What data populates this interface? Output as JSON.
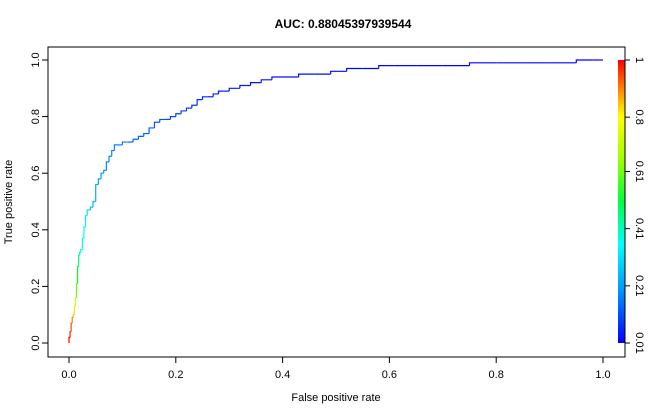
{
  "chart_data": {
    "type": "line",
    "title": "AUC: 0.88045397939544",
    "xlabel": "False positive rate",
    "ylabel": "True positive rate",
    "xlim": [
      0,
      1
    ],
    "ylim": [
      0,
      1
    ],
    "x_ticks": [
      "0.0",
      "0.2",
      "0.4",
      "0.6",
      "0.8",
      "1.0"
    ],
    "y_ticks": [
      "0.0",
      "0.2",
      "0.4",
      "0.6",
      "0.8",
      "1.0"
    ],
    "grid": false,
    "colorbar": {
      "ticks": [
        "0.01",
        "0.21",
        "0.41",
        "0.61",
        "0.8",
        "1"
      ],
      "tick_values": [
        0.01,
        0.21,
        0.41,
        0.61,
        0.8,
        1.0
      ],
      "range": [
        0.01,
        1.0
      ]
    },
    "series": [
      {
        "x": [
          0,
          0.002,
          0.004,
          0.006,
          0.008,
          0.01,
          0.012,
          0.014,
          0.016,
          0.018,
          0.02,
          0.022,
          0.025,
          0.028,
          0.031,
          0.034,
          0.037,
          0.04,
          0.045,
          0.05,
          0.055,
          0.06,
          0.065,
          0.07,
          0.075,
          0.08,
          0.085,
          0.09,
          0.1,
          0.11,
          0.12,
          0.13,
          0.14,
          0.15,
          0.16,
          0.17,
          0.18,
          0.19,
          0.2,
          0.21,
          0.22,
          0.23,
          0.24,
          0.25,
          0.26,
          0.27,
          0.28,
          0.29,
          0.3,
          0.32,
          0.34,
          0.36,
          0.38,
          0.4,
          0.43,
          0.46,
          0.49,
          0.52,
          0.55,
          0.58,
          0.61,
          0.65,
          0.7,
          0.75,
          0.8,
          0.85,
          0.9,
          0.95,
          0.98,
          1.0
        ],
        "y": [
          0,
          0.02,
          0.04,
          0.07,
          0.09,
          0.1,
          0.13,
          0.16,
          0.21,
          0.27,
          0.31,
          0.32,
          0.33,
          0.37,
          0.41,
          0.45,
          0.47,
          0.47,
          0.48,
          0.5,
          0.56,
          0.58,
          0.6,
          0.61,
          0.64,
          0.66,
          0.68,
          0.7,
          0.7,
          0.71,
          0.71,
          0.72,
          0.73,
          0.74,
          0.76,
          0.78,
          0.79,
          0.79,
          0.8,
          0.81,
          0.82,
          0.83,
          0.84,
          0.86,
          0.87,
          0.87,
          0.88,
          0.89,
          0.89,
          0.9,
          0.91,
          0.92,
          0.93,
          0.94,
          0.94,
          0.95,
          0.95,
          0.96,
          0.97,
          0.97,
          0.98,
          0.98,
          0.98,
          0.98,
          0.99,
          0.99,
          0.99,
          0.99,
          1.0,
          1.0
        ],
        "cutoff": [
          1.0,
          0.97,
          0.93,
          0.88,
          0.82,
          0.78,
          0.7,
          0.6,
          0.48,
          0.38,
          0.33,
          0.31,
          0.29,
          0.27,
          0.25,
          0.23,
          0.21,
          0.2,
          0.19,
          0.18,
          0.17,
          0.16,
          0.155,
          0.15,
          0.145,
          0.14,
          0.135,
          0.13,
          0.125,
          0.12,
          0.115,
          0.11,
          0.105,
          0.1,
          0.095,
          0.09,
          0.085,
          0.08,
          0.075,
          0.07,
          0.065,
          0.06,
          0.055,
          0.05,
          0.045,
          0.04,
          0.038,
          0.036,
          0.034,
          0.032,
          0.03,
          0.028,
          0.026,
          0.024,
          0.022,
          0.02,
          0.019,
          0.018,
          0.017,
          0.016,
          0.015,
          0.014,
          0.013,
          0.012,
          0.012,
          0.011,
          0.011,
          0.01,
          0.01,
          0.01
        ]
      }
    ]
  }
}
